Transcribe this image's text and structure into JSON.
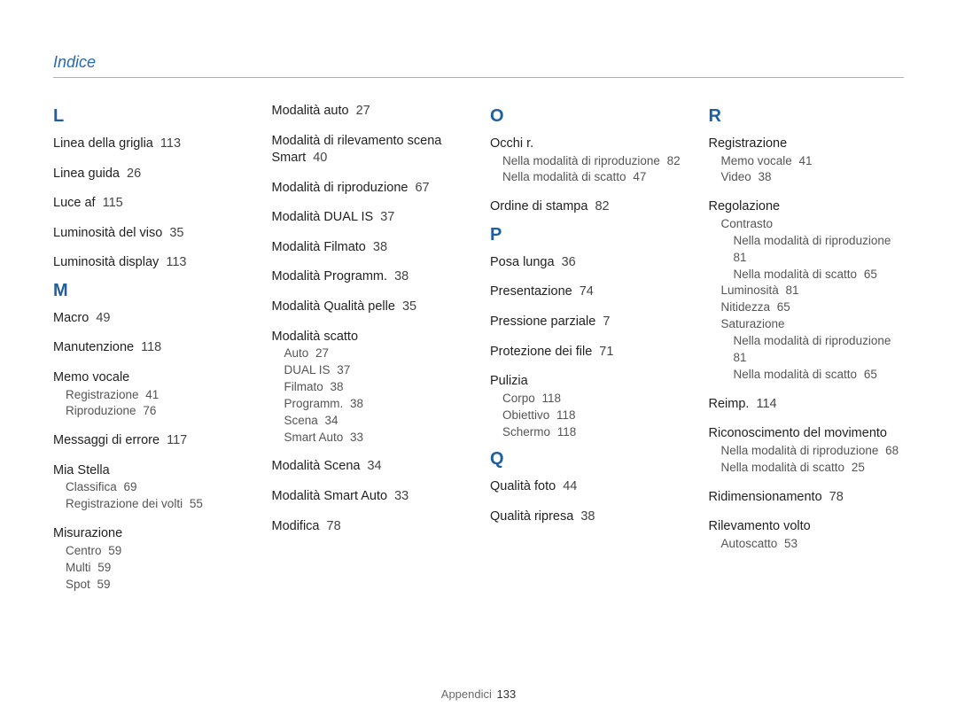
{
  "title": "Indice",
  "footer": {
    "label": "Appendici",
    "page": "133"
  },
  "colors": {
    "heading": "#2a6aa8",
    "letter": "#1f5fa0",
    "text": "#222222",
    "subtext": "#555555",
    "rule": "#b0b0b0",
    "bg": "#ffffff"
  },
  "columns": [
    {
      "sections": [
        {
          "letter": "L",
          "entries": [
            {
              "label": "Linea della griglia",
              "page": "113"
            },
            {
              "label": "Linea guida",
              "page": "26"
            },
            {
              "label": "Luce af",
              "page": "115"
            },
            {
              "label": "Luminosità del viso",
              "page": "35"
            },
            {
              "label": "Luminosità display",
              "page": "113"
            }
          ]
        },
        {
          "letter": "M",
          "entries": [
            {
              "label": "Macro",
              "page": "49"
            },
            {
              "label": "Manutenzione",
              "page": "118"
            },
            {
              "label": "Memo vocale",
              "subs": [
                {
                  "label": "Registrazione",
                  "page": "41"
                },
                {
                  "label": "Riproduzione",
                  "page": "76"
                }
              ]
            },
            {
              "label": "Messaggi di errore",
              "page": "117"
            },
            {
              "label": "Mia Stella",
              "subs": [
                {
                  "label": "Classifica",
                  "page": "69"
                },
                {
                  "label": "Registrazione dei volti",
                  "page": "55"
                }
              ]
            },
            {
              "label": "Misurazione",
              "subs": [
                {
                  "label": "Centro",
                  "page": "59"
                },
                {
                  "label": "Multi",
                  "page": "59"
                },
                {
                  "label": "Spot",
                  "page": "59"
                }
              ]
            }
          ]
        }
      ]
    },
    {
      "sections": [
        {
          "letter": "",
          "entries": [
            {
              "label": "Modalità auto",
              "page": "27"
            },
            {
              "label": "Modalità di rilevamento scena Smart",
              "page": "40"
            },
            {
              "label": "Modalità di riproduzione",
              "page": "67"
            },
            {
              "label": "Modalità DUAL IS",
              "page": "37"
            },
            {
              "label": "Modalità Filmato",
              "page": "38"
            },
            {
              "label": "Modalità Programm.",
              "page": "38"
            },
            {
              "label": "Modalità Qualità pelle",
              "page": "35"
            },
            {
              "label": "Modalità scatto",
              "subs": [
                {
                  "label": "Auto",
                  "page": "27"
                },
                {
                  "label": "DUAL IS",
                  "page": "37"
                },
                {
                  "label": "Filmato",
                  "page": "38"
                },
                {
                  "label": "Programm.",
                  "page": "38"
                },
                {
                  "label": "Scena",
                  "page": "34"
                },
                {
                  "label": "Smart Auto",
                  "page": "33"
                }
              ]
            },
            {
              "label": "Modalità Scena",
              "page": "34"
            },
            {
              "label": "Modalità Smart Auto",
              "page": "33"
            },
            {
              "label": "Modifica",
              "page": "78"
            }
          ]
        }
      ]
    },
    {
      "sections": [
        {
          "letter": "O",
          "entries": [
            {
              "label": "Occhi r.",
              "subs": [
                {
                  "label": "Nella modalità di riproduzione",
                  "page": "82"
                },
                {
                  "label": "Nella modalità di scatto",
                  "page": "47"
                }
              ]
            },
            {
              "label": "Ordine di stampa",
              "page": "82"
            }
          ]
        },
        {
          "letter": "P",
          "entries": [
            {
              "label": "Posa lunga",
              "page": "36"
            },
            {
              "label": "Presentazione",
              "page": "74"
            },
            {
              "label": "Pressione parziale",
              "page": "7"
            },
            {
              "label": "Protezione dei file",
              "page": "71"
            },
            {
              "label": "Pulizia",
              "subs": [
                {
                  "label": "Corpo",
                  "page": "118"
                },
                {
                  "label": "Obiettivo",
                  "page": "118"
                },
                {
                  "label": "Schermo",
                  "page": "118"
                }
              ]
            }
          ]
        },
        {
          "letter": "Q",
          "entries": [
            {
              "label": "Qualità foto",
              "page": "44"
            },
            {
              "label": "Qualità ripresa",
              "page": "38"
            }
          ]
        }
      ]
    },
    {
      "sections": [
        {
          "letter": "R",
          "entries": [
            {
              "label": "Registrazione",
              "subs": [
                {
                  "label": "Memo vocale",
                  "page": "41"
                },
                {
                  "label": "Video",
                  "page": "38"
                }
              ]
            },
            {
              "label": "Regolazione",
              "subs": [
                {
                  "label": "Contrasto",
                  "subs": [
                    {
                      "label": "Nella modalità di riproduzione",
                      "page": "81"
                    },
                    {
                      "label": "Nella modalità di scatto",
                      "page": "65"
                    }
                  ]
                },
                {
                  "label": "Luminosità",
                  "page": "81"
                },
                {
                  "label": "Nitidezza",
                  "page": "65"
                },
                {
                  "label": "Saturazione",
                  "subs": [
                    {
                      "label": "Nella modalità di riproduzione",
                      "page": "81"
                    },
                    {
                      "label": "Nella modalità di scatto",
                      "page": "65"
                    }
                  ]
                }
              ]
            },
            {
              "label": "Reimp.",
              "page": "114"
            },
            {
              "label": "Riconoscimento del movimento",
              "subs": [
                {
                  "label": "Nella modalità di riproduzione",
                  "page": "68"
                },
                {
                  "label": "Nella modalità di scatto",
                  "page": "25"
                }
              ]
            },
            {
              "label": "Ridimensionamento",
              "page": "78"
            },
            {
              "label": "Rilevamento volto",
              "subs": [
                {
                  "label": "Autoscatto",
                  "page": "53"
                }
              ]
            }
          ]
        }
      ]
    }
  ]
}
